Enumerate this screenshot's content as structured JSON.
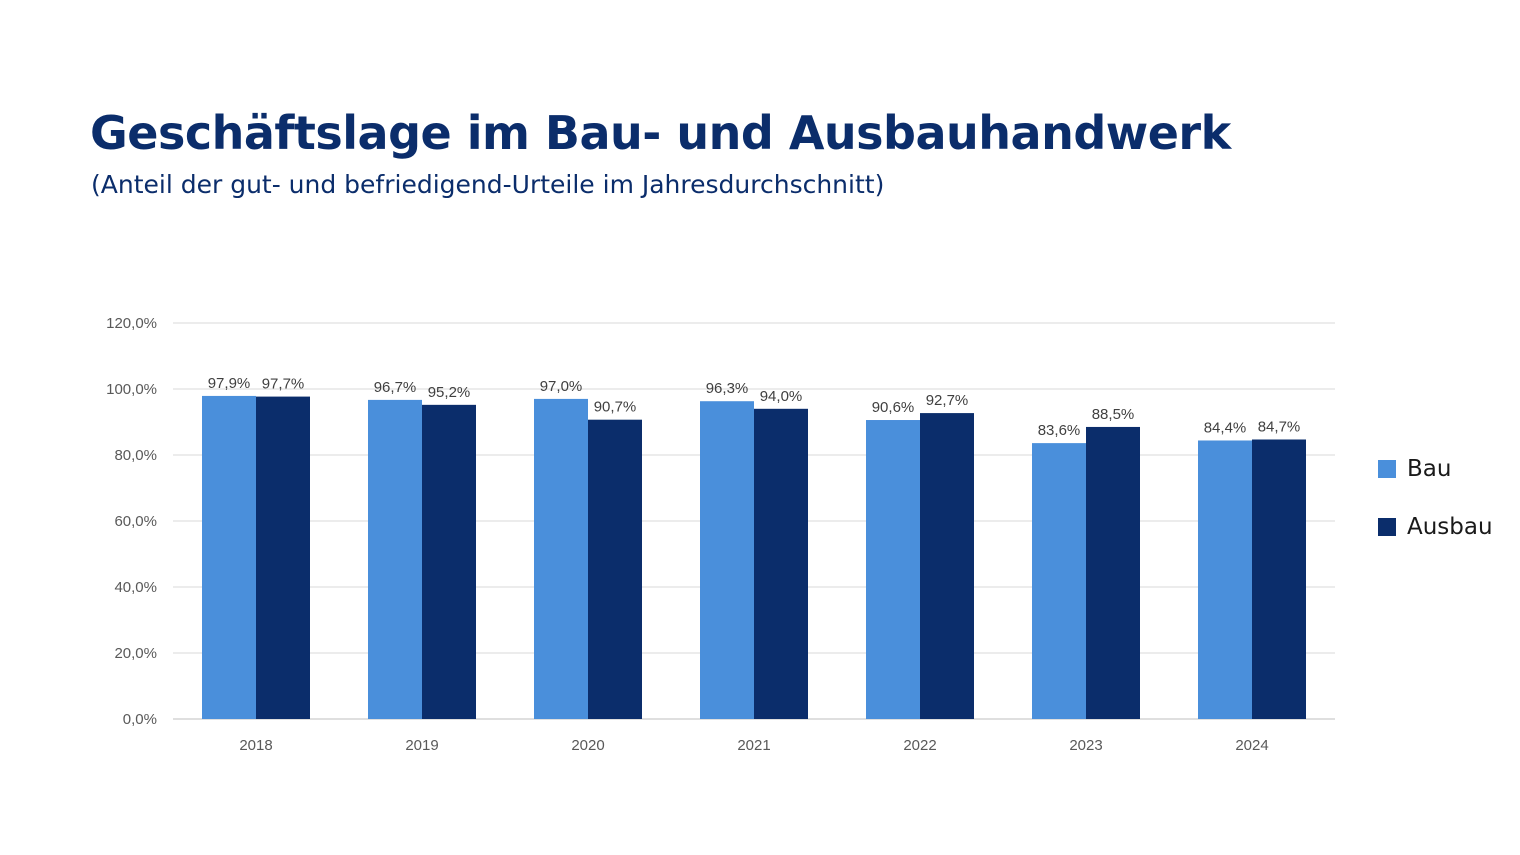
{
  "chart_data": {
    "type": "bar",
    "title": "Geschäftslage im Bau- und Ausbauhandwerk",
    "subtitle": "(Anteil der gut- und befriedigend-Urteile im Jahresdurchschnitt)",
    "categories": [
      "2018",
      "2019",
      "2020",
      "2021",
      "2022",
      "2023",
      "2024"
    ],
    "series": [
      {
        "name": "Bau",
        "color": "#4a8fdb",
        "values": [
          97.9,
          96.7,
          97.0,
          96.3,
          90.6,
          83.6,
          84.4
        ],
        "labels": [
          "97,9%",
          "96,7%",
          "97,0%",
          "96,3%",
          "90,6%",
          "83,6%",
          "84,4%"
        ]
      },
      {
        "name": "Ausbau",
        "color": "#0b2d6b",
        "values": [
          97.7,
          95.2,
          90.7,
          94.0,
          92.7,
          88.5,
          84.7
        ],
        "labels": [
          "97,7%",
          "95,2%",
          "90,7%",
          "94,0%",
          "92,7%",
          "88,5%",
          "84,7%"
        ]
      }
    ],
    "ylim": [
      0,
      120
    ],
    "yticks": [
      0,
      20,
      40,
      60,
      80,
      100,
      120
    ],
    "ytick_labels": [
      "0,0%",
      "20,0%",
      "40,0%",
      "60,0%",
      "80,0%",
      "100,0%",
      "120,0%"
    ],
    "grid": true,
    "legend": "right"
  }
}
